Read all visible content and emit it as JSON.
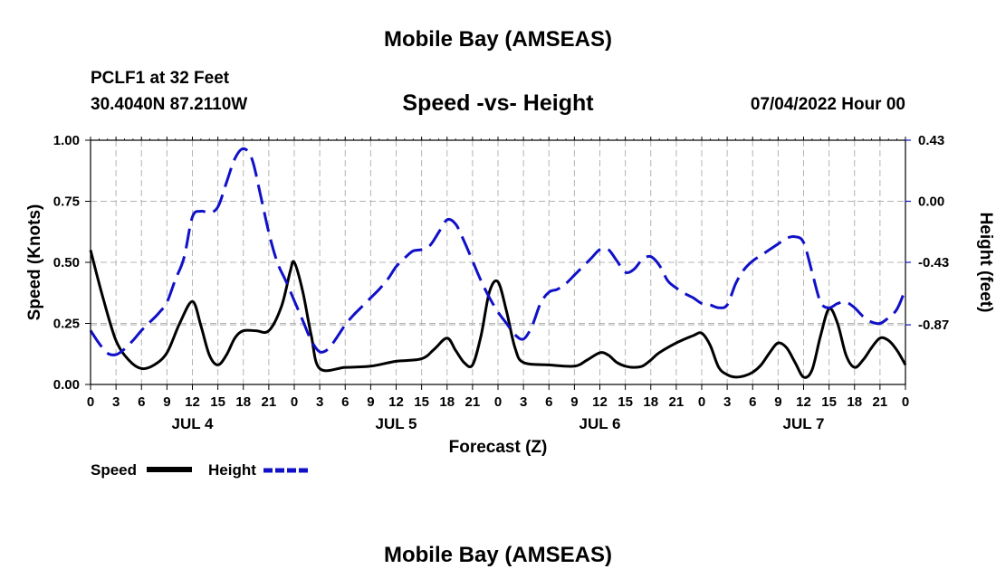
{
  "page": {
    "main_title": "Mobile Bay (AMSEAS)",
    "station": "PCLF1 at 32 Feet",
    "coords": "30.4040N  87.2110W",
    "datestamp": "07/04/2022 Hour 00",
    "bottom_title": "Mobile Bay (AMSEAS)"
  },
  "chart_data": {
    "type": "line",
    "title": "Speed -vs- Height",
    "xlabel": "Forecast (Z)",
    "ylabel": "Speed (Knots)",
    "y2label": "Height (feet)",
    "xlim": [
      0,
      96
    ],
    "ylim": [
      0,
      1
    ],
    "y2lim": [
      -1.29,
      0.43
    ],
    "x_ticks": [
      0,
      3,
      6,
      9,
      12,
      15,
      18,
      21,
      24,
      27,
      30,
      33,
      36,
      39,
      42,
      45,
      48,
      51,
      54,
      57,
      60,
      63,
      66,
      69,
      72,
      75,
      78,
      81,
      84,
      87,
      90,
      93,
      96
    ],
    "x_tick_labels": [
      "0",
      "3",
      "6",
      "9",
      "12",
      "15",
      "18",
      "21",
      "0",
      "3",
      "6",
      "9",
      "12",
      "15",
      "18",
      "21",
      "0",
      "3",
      "6",
      "9",
      "12",
      "15",
      "18",
      "21",
      "0",
      "3",
      "6",
      "9",
      "12",
      "15",
      "18",
      "21",
      "0"
    ],
    "y_ticks": [
      0,
      0.25,
      0.5,
      0.75,
      1.0
    ],
    "y_tick_labels": [
      "0.00",
      "0.25",
      "0.50",
      "0.75",
      "1.00"
    ],
    "y2_ticks": [
      -0.87,
      -0.43,
      0.0,
      0.43
    ],
    "y2_tick_labels": [
      "-0.87",
      "-0.43",
      "0.00",
      "0.43"
    ],
    "day_labels": [
      {
        "x": 12,
        "label": "JUL 4"
      },
      {
        "x": 36,
        "label": "JUL 5"
      },
      {
        "x": 60,
        "label": "JUL 6"
      },
      {
        "x": 84,
        "label": "JUL 7"
      }
    ],
    "grid": true,
    "legend": [
      {
        "name": "Speed",
        "color": "#000000",
        "style": "solid"
      },
      {
        "name": "Height",
        "color": "#1010c8",
        "style": "dashed"
      }
    ],
    "series": [
      {
        "name": "Speed",
        "axis": "left",
        "color": "#000000",
        "points": [
          [
            0,
            0.55
          ],
          [
            1.5,
            0.35
          ],
          [
            3,
            0.18
          ],
          [
            4.5,
            0.1
          ],
          [
            6,
            0.065
          ],
          [
            7.5,
            0.08
          ],
          [
            9,
            0.13
          ],
          [
            10.5,
            0.25
          ],
          [
            12,
            0.34
          ],
          [
            13,
            0.24
          ],
          [
            14,
            0.12
          ],
          [
            15,
            0.08
          ],
          [
            16,
            0.12
          ],
          [
            17,
            0.19
          ],
          [
            18,
            0.22
          ],
          [
            19.5,
            0.22
          ],
          [
            21,
            0.22
          ],
          [
            22.5,
            0.32
          ],
          [
            23.5,
            0.46
          ],
          [
            24,
            0.5
          ],
          [
            25,
            0.38
          ],
          [
            26,
            0.2
          ],
          [
            27,
            0.065
          ],
          [
            30,
            0.07
          ],
          [
            33,
            0.075
          ],
          [
            36,
            0.095
          ],
          [
            39,
            0.105
          ],
          [
            40.5,
            0.145
          ],
          [
            42,
            0.19
          ],
          [
            43,
            0.14
          ],
          [
            44,
            0.09
          ],
          [
            45,
            0.08
          ],
          [
            46,
            0.2
          ],
          [
            47,
            0.38
          ],
          [
            48,
            0.42
          ],
          [
            49,
            0.3
          ],
          [
            50,
            0.15
          ],
          [
            51,
            0.09
          ],
          [
            54,
            0.08
          ],
          [
            57,
            0.075
          ],
          [
            58.5,
            0.1
          ],
          [
            60,
            0.13
          ],
          [
            61,
            0.12
          ],
          [
            62,
            0.09
          ],
          [
            63,
            0.075
          ],
          [
            64,
            0.07
          ],
          [
            65,
            0.075
          ],
          [
            66,
            0.1
          ],
          [
            67,
            0.13
          ],
          [
            69,
            0.17
          ],
          [
            71,
            0.2
          ],
          [
            72,
            0.21
          ],
          [
            73,
            0.16
          ],
          [
            74,
            0.07
          ],
          [
            75,
            0.04
          ],
          [
            76,
            0.03
          ],
          [
            77,
            0.035
          ],
          [
            78,
            0.05
          ],
          [
            79,
            0.08
          ],
          [
            80,
            0.13
          ],
          [
            81,
            0.17
          ],
          [
            82,
            0.15
          ],
          [
            83,
            0.09
          ],
          [
            84,
            0.03
          ],
          [
            85,
            0.06
          ],
          [
            86,
            0.2
          ],
          [
            87,
            0.31
          ],
          [
            88,
            0.25
          ],
          [
            89,
            0.12
          ],
          [
            90,
            0.07
          ],
          [
            91,
            0.1
          ],
          [
            92,
            0.15
          ],
          [
            93,
            0.19
          ],
          [
            94,
            0.18
          ],
          [
            95,
            0.14
          ],
          [
            96,
            0.08
          ]
        ]
      },
      {
        "name": "Height",
        "axis": "right",
        "color": "#1010c8",
        "points": [
          [
            0,
            -0.91
          ],
          [
            1,
            -1.0
          ],
          [
            2,
            -1.07
          ],
          [
            3,
            -1.08
          ],
          [
            4,
            -1.04
          ],
          [
            5,
            -0.98
          ],
          [
            6,
            -0.91
          ],
          [
            7,
            -0.85
          ],
          [
            8,
            -0.79
          ],
          [
            9,
            -0.71
          ],
          [
            10,
            -0.55
          ],
          [
            11,
            -0.4
          ],
          [
            12,
            -0.11
          ],
          [
            13,
            -0.07
          ],
          [
            14,
            -0.08
          ],
          [
            15,
            -0.04
          ],
          [
            16,
            0.13
          ],
          [
            17,
            0.3
          ],
          [
            18,
            0.37
          ],
          [
            19,
            0.3
          ],
          [
            20,
            0.05
          ],
          [
            21,
            -0.22
          ],
          [
            22,
            -0.43
          ],
          [
            23,
            -0.56
          ],
          [
            24,
            -0.7
          ],
          [
            25,
            -0.84
          ],
          [
            26,
            -0.98
          ],
          [
            27,
            -1.06
          ],
          [
            28,
            -1.04
          ],
          [
            29,
            -0.96
          ],
          [
            30,
            -0.87
          ],
          [
            31,
            -0.8
          ],
          [
            32,
            -0.74
          ],
          [
            33,
            -0.68
          ],
          [
            34,
            -0.62
          ],
          [
            35,
            -0.55
          ],
          [
            36,
            -0.46
          ],
          [
            37,
            -0.4
          ],
          [
            38,
            -0.35
          ],
          [
            39,
            -0.34
          ],
          [
            40,
            -0.31
          ],
          [
            41,
            -0.22
          ],
          [
            42,
            -0.13
          ],
          [
            43,
            -0.16
          ],
          [
            44,
            -0.28
          ],
          [
            45,
            -0.42
          ],
          [
            46,
            -0.56
          ],
          [
            47,
            -0.68
          ],
          [
            48,
            -0.78
          ],
          [
            49,
            -0.86
          ],
          [
            50,
            -0.94
          ],
          [
            51,
            -0.97
          ],
          [
            52,
            -0.88
          ],
          [
            53,
            -0.72
          ],
          [
            54,
            -0.64
          ],
          [
            55,
            -0.62
          ],
          [
            56,
            -0.58
          ],
          [
            57,
            -0.52
          ],
          [
            58,
            -0.46
          ],
          [
            59,
            -0.4
          ],
          [
            60,
            -0.34
          ],
          [
            61,
            -0.34
          ],
          [
            62,
            -0.42
          ],
          [
            63,
            -0.5
          ],
          [
            64,
            -0.48
          ],
          [
            65,
            -0.41
          ],
          [
            66,
            -0.39
          ],
          [
            67,
            -0.45
          ],
          [
            68,
            -0.56
          ],
          [
            69,
            -0.61
          ],
          [
            70,
            -0.65
          ],
          [
            71,
            -0.68
          ],
          [
            72,
            -0.72
          ],
          [
            73,
            -0.73
          ],
          [
            74,
            -0.75
          ],
          [
            75,
            -0.73
          ],
          [
            76,
            -0.58
          ],
          [
            77,
            -0.48
          ],
          [
            78,
            -0.42
          ],
          [
            79,
            -0.38
          ],
          [
            80,
            -0.34
          ],
          [
            81,
            -0.3
          ],
          [
            82,
            -0.26
          ],
          [
            83,
            -0.25
          ],
          [
            84,
            -0.29
          ],
          [
            85,
            -0.5
          ],
          [
            86,
            -0.71
          ],
          [
            87,
            -0.75
          ],
          [
            88,
            -0.72
          ],
          [
            89,
            -0.71
          ],
          [
            90,
            -0.75
          ],
          [
            91,
            -0.81
          ],
          [
            92,
            -0.85
          ],
          [
            93,
            -0.86
          ],
          [
            94,
            -0.82
          ],
          [
            95,
            -0.76
          ],
          [
            96,
            -0.62
          ]
        ]
      }
    ]
  }
}
